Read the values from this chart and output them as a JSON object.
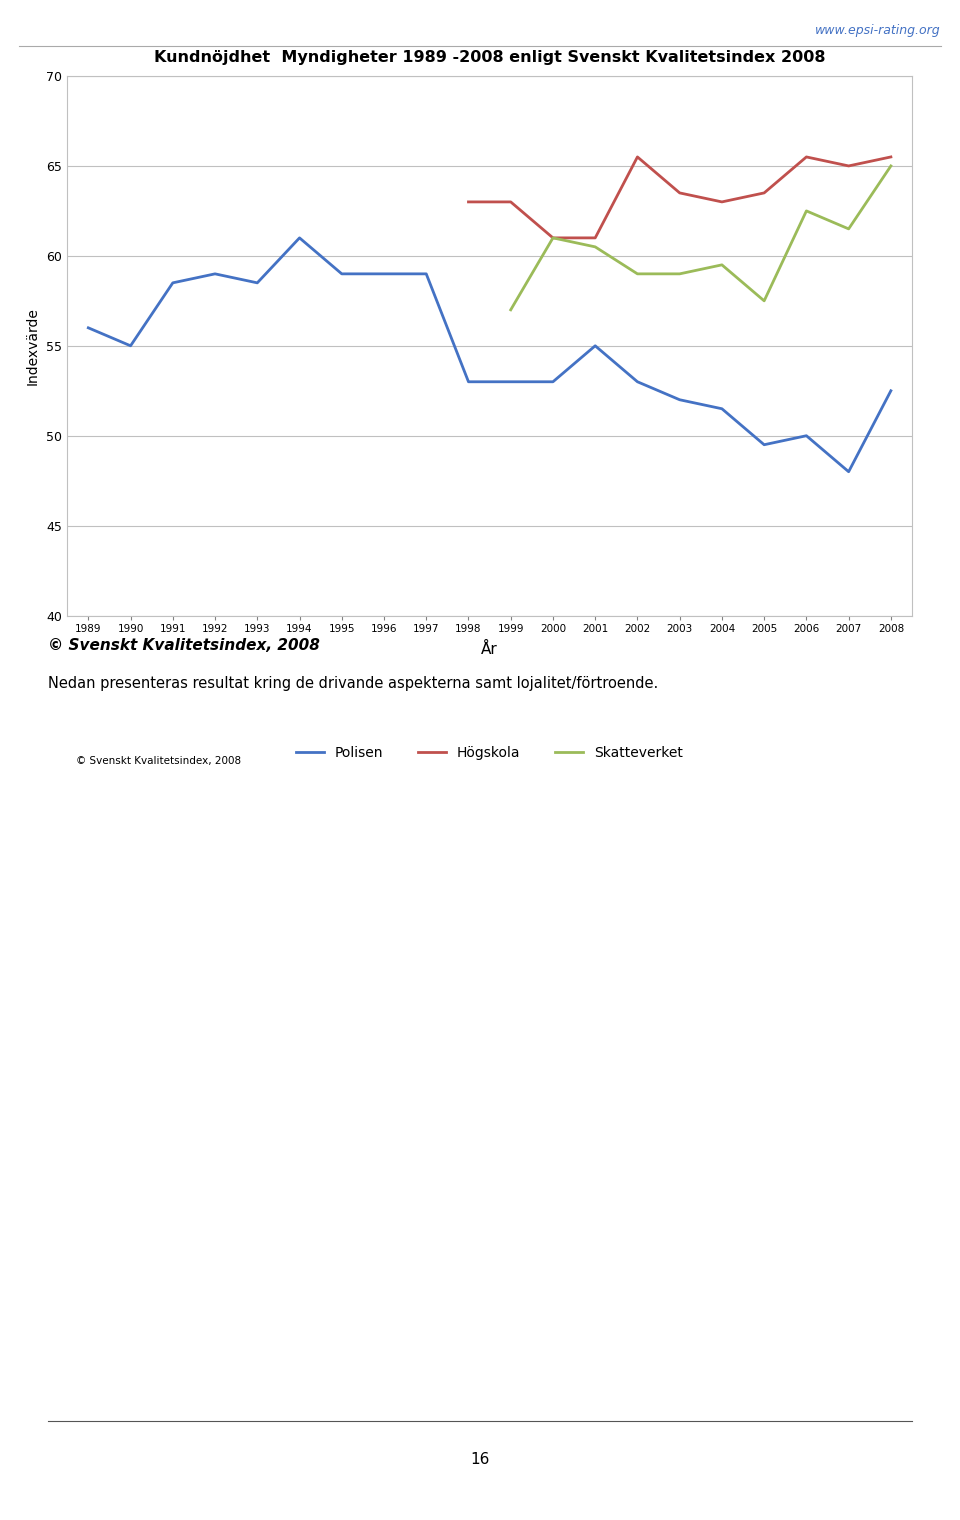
{
  "title": "Kundnöjdhet  Myndigheter 1989 -2008 enligt Svenskt Kvalitetsindex 2008",
  "xlabel": "År",
  "ylabel": "Indexvärde",
  "years_all": [
    1989,
    1990,
    1991,
    1992,
    1993,
    1994,
    1995,
    1996,
    1997,
    1998,
    1999,
    2000,
    2001,
    2002,
    2003,
    2004,
    2005,
    2006,
    2007,
    2008
  ],
  "polisen": {
    "years": [
      1989,
      1990,
      1991,
      1992,
      1993,
      1994,
      1995,
      1996,
      1997,
      1998,
      1999,
      2000,
      2001,
      2002,
      2003,
      2004,
      2005,
      2006,
      2007,
      2008
    ],
    "values": [
      56.0,
      55.0,
      58.5,
      59.0,
      58.5,
      61.0,
      59.0,
      59.0,
      59.0,
      53.0,
      53.0,
      53.0,
      55.0,
      53.0,
      52.0,
      51.5,
      49.5,
      50.0,
      48.0,
      52.5
    ],
    "color": "#4472C4",
    "label": "Polisen"
  },
  "hogskola": {
    "years": [
      1998,
      1999,
      2000,
      2001,
      2002,
      2003,
      2004,
      2005,
      2006,
      2007,
      2008
    ],
    "values": [
      63.0,
      63.0,
      61.0,
      61.0,
      65.5,
      63.5,
      63.0,
      63.5,
      65.5,
      65.0,
      65.5
    ],
    "color": "#C0504D",
    "label": "Högskola"
  },
  "skatteverket": {
    "years": [
      1999,
      2000,
      2001,
      2002,
      2003,
      2004,
      2005,
      2006,
      2007,
      2008
    ],
    "values": [
      57.0,
      61.0,
      60.5,
      59.0,
      59.0,
      59.5,
      57.5,
      62.5,
      61.5,
      65.0
    ],
    "color": "#9BBB59",
    "label": "Skatteverket"
  },
  "ylim": [
    40,
    70
  ],
  "yticks": [
    40,
    45,
    50,
    55,
    60,
    65,
    70
  ],
  "copyright_small": "© Svenskt Kvalitetsindex, 2008",
  "copyright_bold": "© Svenskt Kvalitetsindex, 2008",
  "footer_text": "Nedan presenteras resultat kring de drivande aspekterna samt lojalitet/förtroende.",
  "url_text": "www.epsi-rating.org",
  "page_number": "16",
  "background_color": "#FFFFFF",
  "line_width": 2.0
}
